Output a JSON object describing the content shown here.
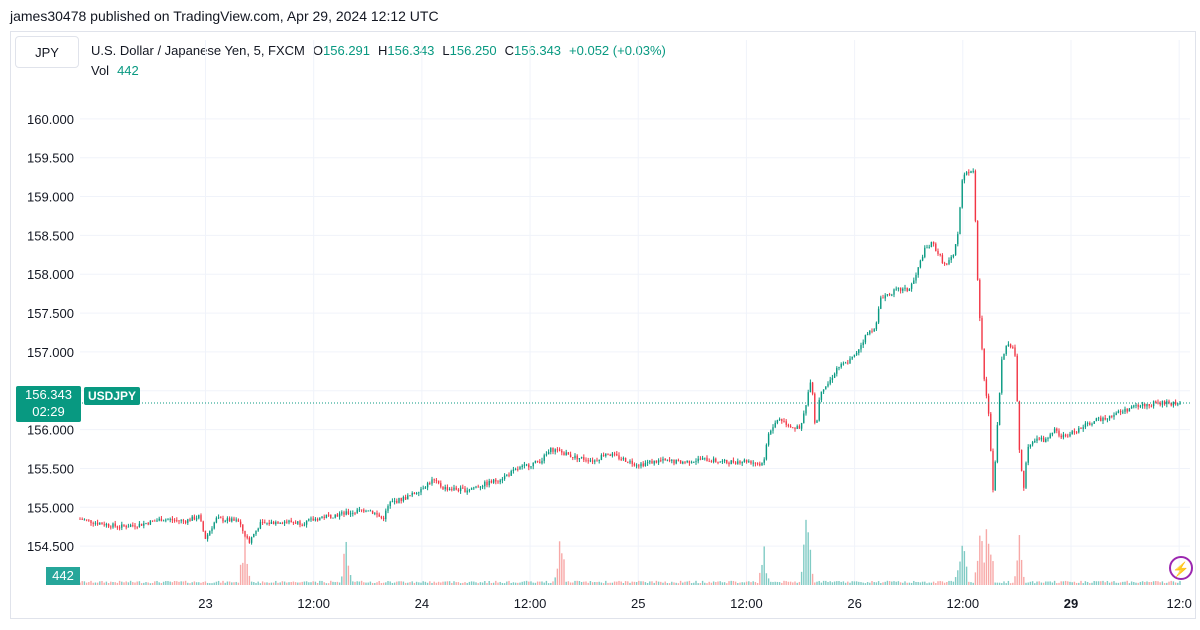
{
  "publisher_line": "james30478 published on TradingView.com, Apr 29, 2024 12:12 UTC",
  "symbol_button": "JPY",
  "legend": {
    "title": "U.S. Dollar / Japanese Yen, 5, FXCM",
    "open_label": "O",
    "open": "156.291",
    "high_label": "H",
    "high": "156.343",
    "low_label": "L",
    "low": "156.250",
    "close_label": "C",
    "close": "156.343",
    "change": "+0.052 (+0.03%)",
    "vol_label": "Vol",
    "vol": "442"
  },
  "price_tag": {
    "price": "156.343",
    "countdown": "02:29",
    "symbol": "USDJPY"
  },
  "volume_tag": "442",
  "colors": {
    "up": "#089981",
    "down": "#f23645",
    "vol_up": "#80cbc4",
    "vol_down": "#f7a9a7",
    "grid": "#f0f3fa",
    "accent": "#9c27b0"
  },
  "icons": {
    "lightning": "lightning-icon"
  },
  "chart_data": {
    "type": "candlestick",
    "symbol": "USDJPY",
    "timeframe": "5",
    "y_ticks": [
      "154.500",
      "155.000",
      "155.500",
      "156.000",
      "156.500",
      "157.000",
      "157.500",
      "158.000",
      "158.500",
      "159.000",
      "159.500",
      "160.000"
    ],
    "y_tick_values": [
      154.5,
      155.0,
      155.5,
      156.0,
      156.5,
      157.0,
      157.5,
      158.0,
      158.5,
      159.0,
      159.5,
      160.0
    ],
    "ylim": [
      154.0,
      160.5
    ],
    "x_ticks": [
      {
        "label": "23",
        "t": 1,
        "bold": false
      },
      {
        "label": "12:00",
        "t": 1.5,
        "bold": false
      },
      {
        "label": "24",
        "t": 2,
        "bold": false
      },
      {
        "label": "12:00",
        "t": 2.5,
        "bold": false
      },
      {
        "label": "25",
        "t": 3,
        "bold": false
      },
      {
        "label": "12:00",
        "t": 3.5,
        "bold": false
      },
      {
        "label": "26",
        "t": 4,
        "bold": false
      },
      {
        "label": "12:00",
        "t": 4.5,
        "bold": false
      },
      {
        "label": "29",
        "t": 5,
        "bold": true
      },
      {
        "label": "12:0",
        "t": 5.5,
        "bold": false
      }
    ],
    "xlim": [
      0.42,
      5.55
    ],
    "series_price_path": [
      [
        0.42,
        154.85
      ],
      [
        0.5,
        154.8
      ],
      [
        0.6,
        154.75
      ],
      [
        0.7,
        154.78
      ],
      [
        0.8,
        154.85
      ],
      [
        0.9,
        154.82
      ],
      [
        0.97,
        154.88
      ],
      [
        1.0,
        154.6
      ],
      [
        1.05,
        154.85
      ],
      [
        1.15,
        154.82
      ],
      [
        1.2,
        154.55
      ],
      [
        1.25,
        154.78
      ],
      [
        1.35,
        154.82
      ],
      [
        1.45,
        154.8
      ],
      [
        1.55,
        154.88
      ],
      [
        1.65,
        154.92
      ],
      [
        1.75,
        154.98
      ],
      [
        1.82,
        154.85
      ],
      [
        1.85,
        155.05
      ],
      [
        1.95,
        155.15
      ],
      [
        2.0,
        155.25
      ],
      [
        2.05,
        155.35
      ],
      [
        2.1,
        155.25
      ],
      [
        2.2,
        155.22
      ],
      [
        2.35,
        155.35
      ],
      [
        2.45,
        155.5
      ],
      [
        2.55,
        155.6
      ],
      [
        2.6,
        155.75
      ],
      [
        2.7,
        155.65
      ],
      [
        2.8,
        155.6
      ],
      [
        2.85,
        155.7
      ],
      [
        2.95,
        155.6
      ],
      [
        3.0,
        155.55
      ],
      [
        3.1,
        155.6
      ],
      [
        3.2,
        155.58
      ],
      [
        3.3,
        155.62
      ],
      [
        3.4,
        155.58
      ],
      [
        3.5,
        155.6
      ],
      [
        3.58,
        155.55
      ],
      [
        3.6,
        155.95
      ],
      [
        3.65,
        156.15
      ],
      [
        3.7,
        156.05
      ],
      [
        3.75,
        156.0
      ],
      [
        3.78,
        156.4
      ],
      [
        3.8,
        156.7
      ],
      [
        3.82,
        155.95
      ],
      [
        3.84,
        156.5
      ],
      [
        3.88,
        156.6
      ],
      [
        3.92,
        156.8
      ],
      [
        3.96,
        156.85
      ],
      [
        4.0,
        156.95
      ],
      [
        4.05,
        157.2
      ],
      [
        4.1,
        157.35
      ],
      [
        4.12,
        157.7
      ],
      [
        4.2,
        157.8
      ],
      [
        4.25,
        157.8
      ],
      [
        4.28,
        157.95
      ],
      [
        4.32,
        158.3
      ],
      [
        4.36,
        158.4
      ],
      [
        4.42,
        158.1
      ],
      [
        4.46,
        158.25
      ],
      [
        4.48,
        158.6
      ],
      [
        4.5,
        159.3
      ],
      [
        4.55,
        159.35
      ],
      [
        4.57,
        157.8
      ],
      [
        4.6,
        156.6
      ],
      [
        4.62,
        156.2
      ],
      [
        4.64,
        155.2
      ],
      [
        4.68,
        156.9
      ],
      [
        4.7,
        157.1
      ],
      [
        4.74,
        157.05
      ],
      [
        4.76,
        155.8
      ],
      [
        4.78,
        155.2
      ],
      [
        4.8,
        155.8
      ],
      [
        4.84,
        155.9
      ],
      [
        4.88,
        155.85
      ],
      [
        4.92,
        156.0
      ],
      [
        4.96,
        155.9
      ],
      [
        5.0,
        155.95
      ],
      [
        5.1,
        156.1
      ],
      [
        5.2,
        156.2
      ],
      [
        5.3,
        156.3
      ],
      [
        5.4,
        156.34
      ],
      [
        5.45,
        156.34
      ]
    ],
    "volume_spikes": [
      {
        "t": 1.18,
        "v": 0.45
      },
      {
        "t": 1.65,
        "v": 0.45
      },
      {
        "t": 2.64,
        "v": 0.55
      },
      {
        "t": 3.58,
        "v": 0.35
      },
      {
        "t": 3.78,
        "v": 0.85
      },
      {
        "t": 4.48,
        "v": 0.25
      },
      {
        "t": 4.5,
        "v": 0.45
      },
      {
        "t": 4.58,
        "v": 0.75
      },
      {
        "t": 4.62,
        "v": 0.85
      },
      {
        "t": 4.76,
        "v": 0.45
      }
    ],
    "last_price": 156.343
  }
}
